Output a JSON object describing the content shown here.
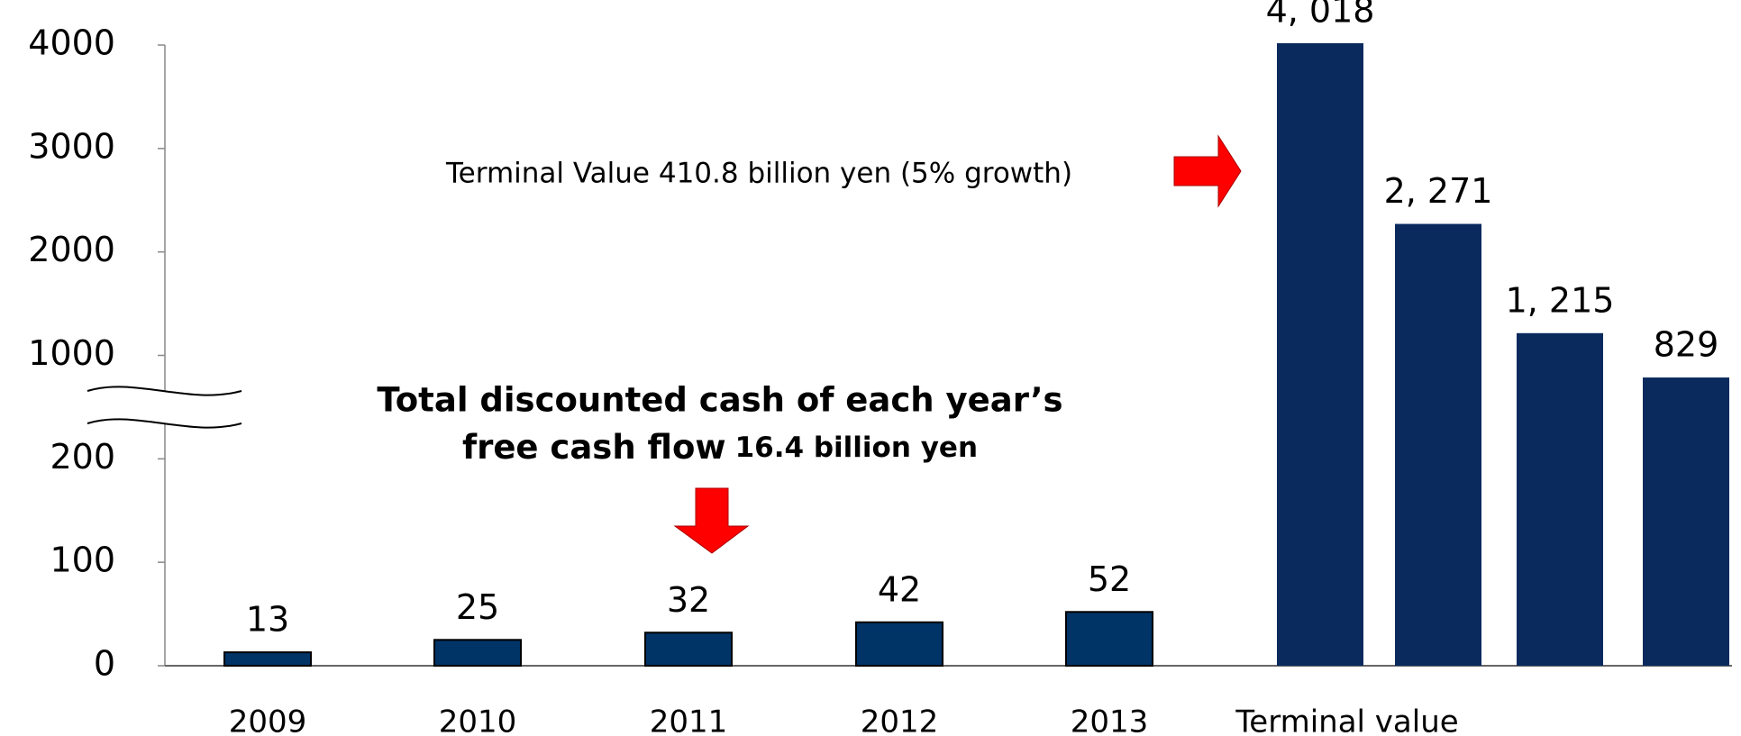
{
  "chart_data": {
    "type": "bar",
    "categories": [
      "2009",
      "2010",
      "2011",
      "2012",
      "2013",
      "Terminal value",
      null,
      null,
      null
    ],
    "values": [
      13,
      25,
      32,
      42,
      52,
      4018,
      2271,
      1215,
      829
    ],
    "value_labels": [
      "13",
      "25",
      "32",
      "42",
      "52",
      "4, 018",
      "2, 271",
      "1, 215",
      "829"
    ],
    "colors": [
      "#003366",
      "#003366",
      "#003366",
      "#003366",
      "#003366",
      "#0a2a5e",
      "#0a2a5e",
      "#0a2a5e",
      "#0a2a5e"
    ],
    "ylim": [
      0,
      4000
    ],
    "yticks": [
      0,
      100,
      200,
      1000,
      2000,
      3000,
      4000
    ],
    "axis_break": true,
    "annotations": [
      "Terminal Value  410.8 billion yen (5% growth)",
      "Total discounted cash of each year’s",
      "free cash flow",
      "16.4 billion yen"
    ]
  }
}
